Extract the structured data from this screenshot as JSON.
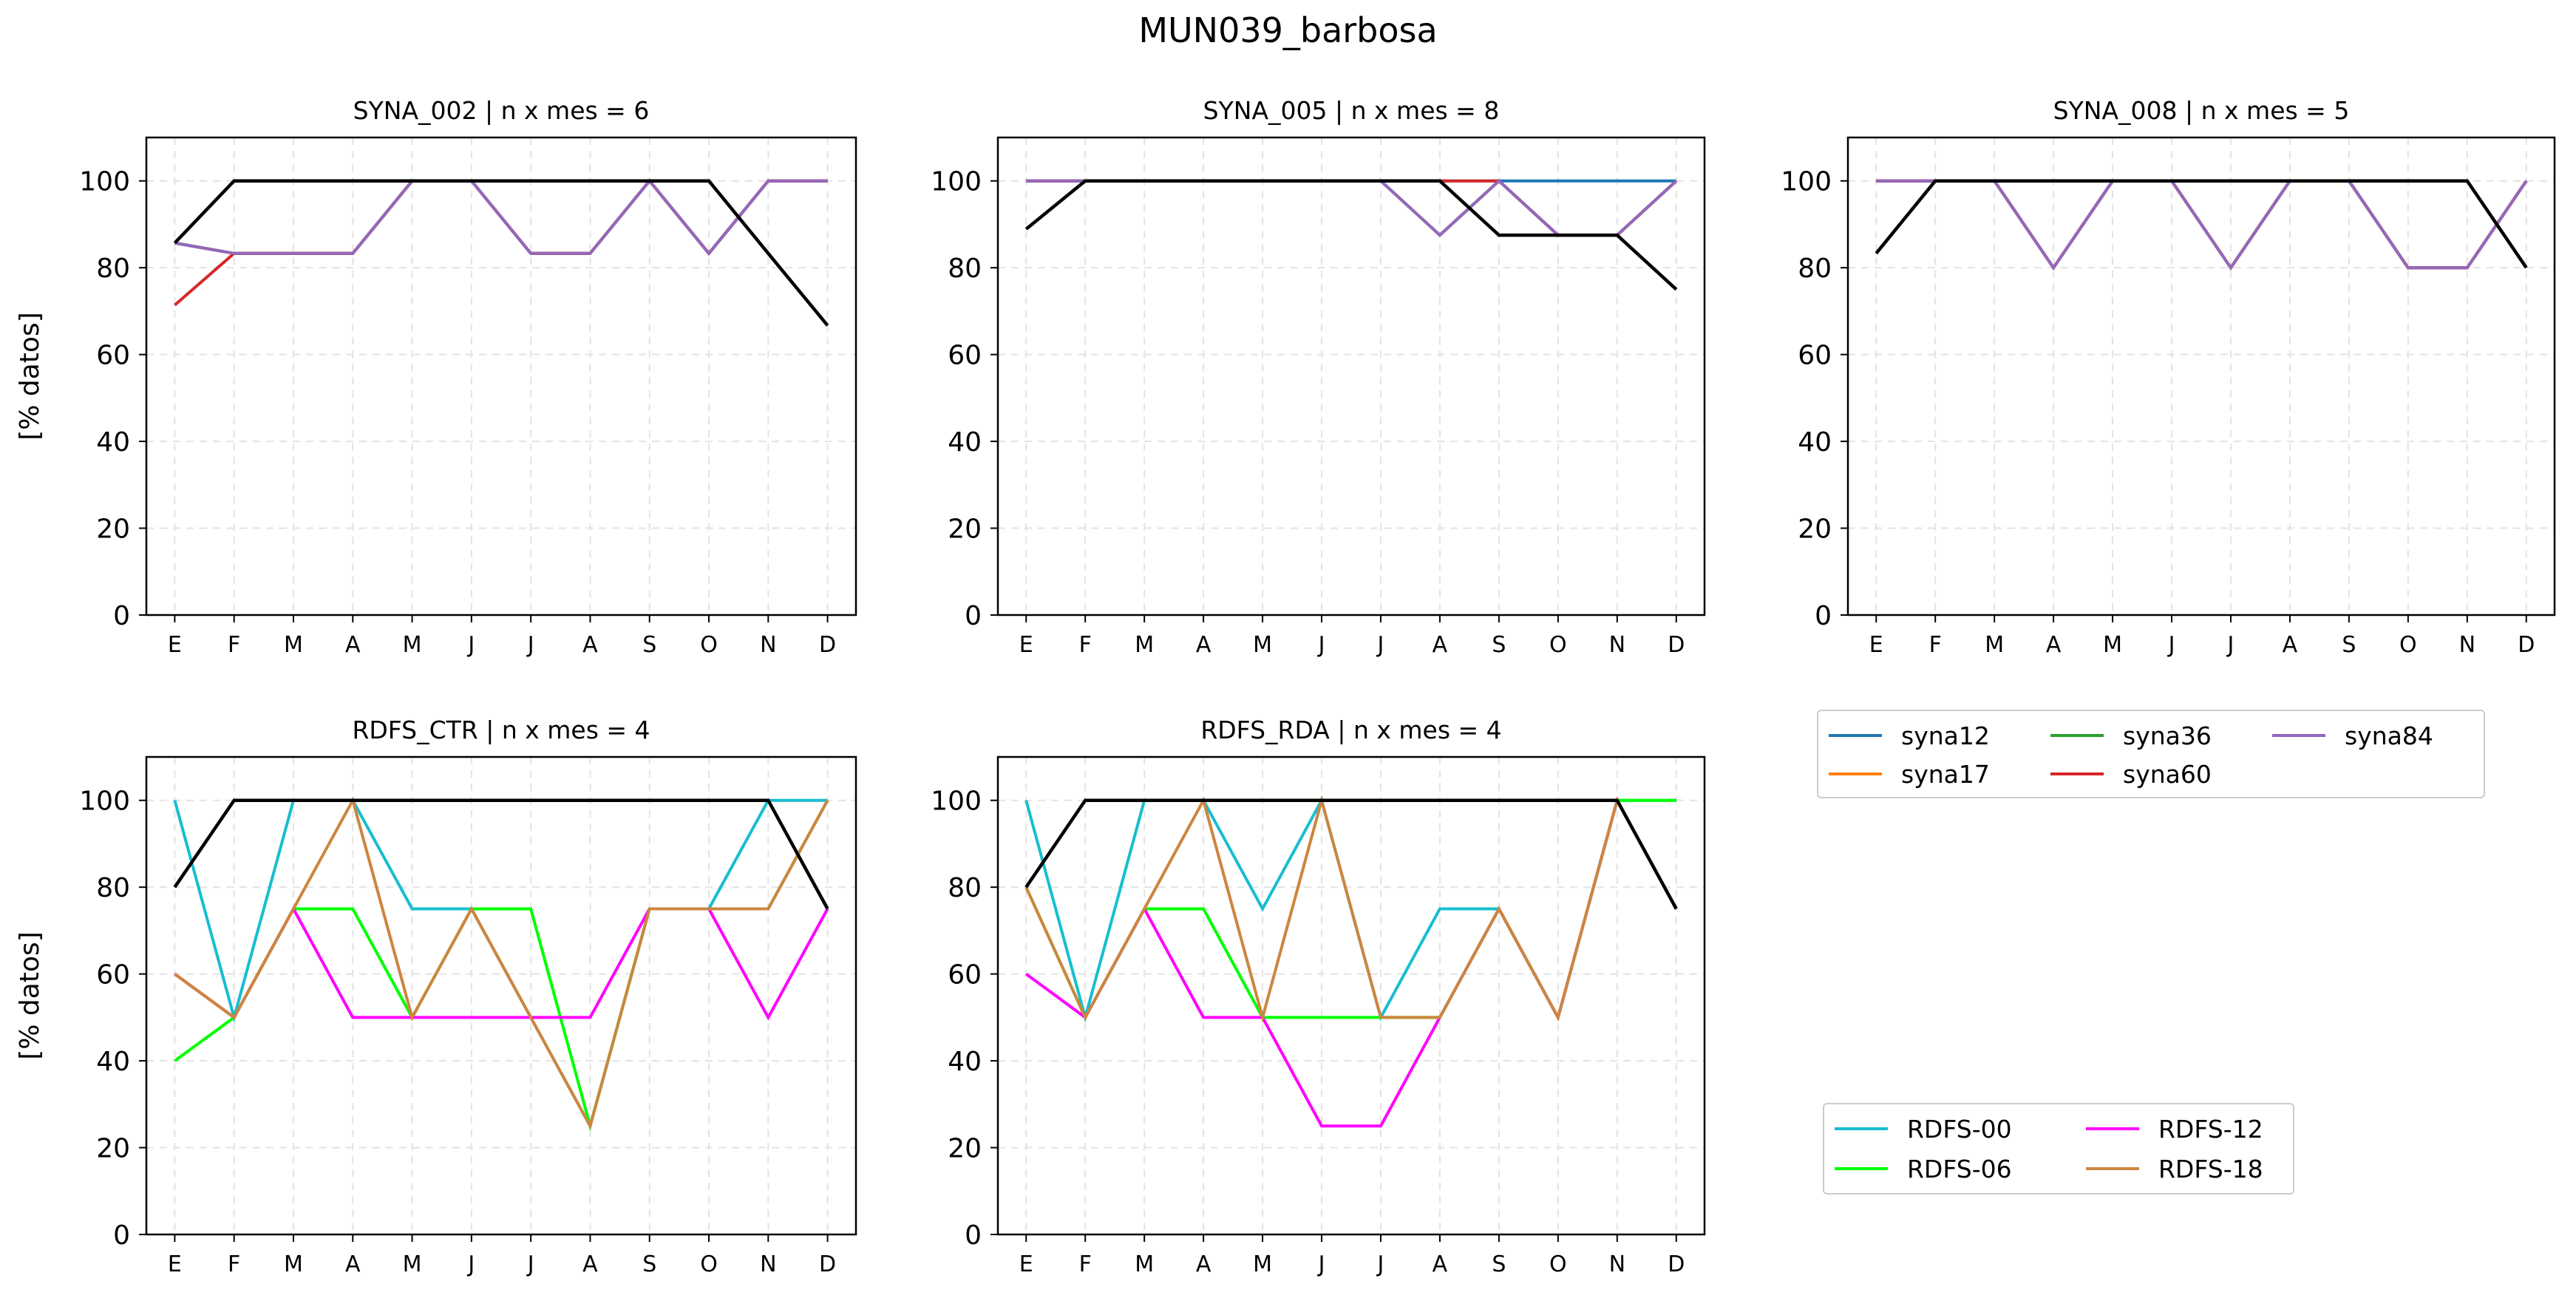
{
  "suptitle": "MUN039_barbosa",
  "ylabel": "[% datos]",
  "months": [
    "E",
    "F",
    "M",
    "A",
    "M",
    "J",
    "J",
    "A",
    "S",
    "O",
    "N",
    "D"
  ],
  "yticks": [
    0,
    20,
    40,
    60,
    80,
    100
  ],
  "colors": {
    "syna12": "#1f77b4",
    "syna17": "#ff7f0e",
    "syna36": "#2ca02c",
    "syna60": "#d62728",
    "syna84": "#9467bd",
    "RDFS-00": "#17becf",
    "RDFS-06": "#00ff00",
    "RDFS-12": "#ff00ff",
    "RDFS-18": "#cd853f",
    "total": "#000000"
  },
  "legends": {
    "syna": [
      "syna12",
      "syna17",
      "syna36",
      "syna60",
      "syna84"
    ],
    "rdfs": [
      "RDFS-00",
      "RDFS-06",
      "RDFS-12",
      "RDFS-18"
    ]
  },
  "chart_data": [
    {
      "type": "line",
      "title": "SYNA_002 | n x mes =  6",
      "categories": [
        "E",
        "F",
        "M",
        "A",
        "M",
        "J",
        "J",
        "A",
        "S",
        "O",
        "N",
        "D"
      ],
      "ylim": [
        0,
        110
      ],
      "grid": true,
      "series": [
        {
          "name": "syna12",
          "values": [
            85.7,
            83.3,
            83.3,
            83.3,
            100,
            100,
            83.3,
            83.3,
            100,
            83.3,
            100,
            100
          ]
        },
        {
          "name": "syna17",
          "values": [
            85.7,
            83.3,
            83.3,
            83.3,
            100,
            100,
            83.3,
            83.3,
            100,
            83.3,
            100,
            100
          ]
        },
        {
          "name": "syna36",
          "values": [
            85.7,
            83.3,
            83.3,
            83.3,
            100,
            100,
            83.3,
            83.3,
            100,
            83.3,
            100,
            100
          ]
        },
        {
          "name": "syna60",
          "values": [
            71.4,
            83.3,
            83.3,
            83.3,
            100,
            100,
            83.3,
            83.3,
            100,
            83.3,
            100,
            100
          ]
        },
        {
          "name": "syna84",
          "values": [
            85.7,
            83.3,
            83.3,
            83.3,
            100,
            100,
            83.3,
            83.3,
            100,
            83.3,
            100,
            100
          ]
        },
        {
          "name": "",
          "key": "total",
          "values": [
            85.7,
            100,
            100,
            100,
            100,
            100,
            100,
            100,
            100,
            100,
            83.3,
            66.7
          ]
        }
      ]
    },
    {
      "type": "line",
      "title": "SYNA_005 | n x mes =  8",
      "categories": [
        "E",
        "F",
        "M",
        "A",
        "M",
        "J",
        "J",
        "A",
        "S",
        "O",
        "N",
        "D"
      ],
      "ylim": [
        0,
        110
      ],
      "grid": true,
      "series": [
        {
          "name": "syna12",
          "values": [
            100,
            100,
            100,
            100,
            100,
            100,
            100,
            100,
            100,
            100,
            100,
            100
          ]
        },
        {
          "name": "syna17",
          "values": [
            100,
            100,
            100,
            100,
            100,
            100,
            100,
            87.5,
            100,
            87.5,
            87.5,
            100
          ]
        },
        {
          "name": "syna36",
          "values": [
            100,
            100,
            100,
            100,
            100,
            100,
            100,
            87.5,
            100,
            87.5,
            87.5,
            100
          ]
        },
        {
          "name": "syna60",
          "values": [
            100,
            100,
            100,
            100,
            100,
            100,
            100,
            100,
            100,
            87.5,
            87.5,
            100
          ]
        },
        {
          "name": "syna84",
          "values": [
            100,
            100,
            100,
            100,
            100,
            100,
            100,
            87.5,
            100,
            87.5,
            87.5,
            100
          ]
        },
        {
          "name": "",
          "key": "total",
          "values": [
            88.9,
            100,
            100,
            100,
            100,
            100,
            100,
            100,
            87.5,
            87.5,
            87.5,
            75
          ]
        }
      ]
    },
    {
      "type": "line",
      "title": "SYNA_008 | n x mes =  5",
      "categories": [
        "E",
        "F",
        "M",
        "A",
        "M",
        "J",
        "J",
        "A",
        "S",
        "O",
        "N",
        "D"
      ],
      "ylim": [
        0,
        110
      ],
      "grid": true,
      "series": [
        {
          "name": "syna12",
          "values": [
            100,
            100,
            100,
            80,
            100,
            100,
            80,
            100,
            100,
            80,
            80,
            100
          ]
        },
        {
          "name": "syna17",
          "values": [
            100,
            100,
            100,
            80,
            100,
            100,
            80,
            100,
            100,
            80,
            80,
            100
          ]
        },
        {
          "name": "syna36",
          "values": [
            100,
            100,
            100,
            80,
            100,
            100,
            80,
            100,
            100,
            80,
            80,
            100
          ]
        },
        {
          "name": "syna60",
          "values": [
            100,
            100,
            100,
            80,
            100,
            100,
            80,
            100,
            100,
            80,
            80,
            100
          ]
        },
        {
          "name": "syna84",
          "values": [
            100,
            100,
            100,
            80,
            100,
            100,
            80,
            100,
            100,
            80,
            80,
            100
          ]
        },
        {
          "name": "",
          "key": "total",
          "values": [
            83.3,
            100,
            100,
            100,
            100,
            100,
            100,
            100,
            100,
            100,
            100,
            80
          ]
        }
      ]
    },
    {
      "type": "line",
      "title": "RDFS_CTR | n x mes =  4",
      "categories": [
        "E",
        "F",
        "M",
        "A",
        "M",
        "J",
        "J",
        "A",
        "S",
        "O",
        "N",
        "D"
      ],
      "ylim": [
        0,
        110
      ],
      "grid": true,
      "series": [
        {
          "name": "RDFS-00",
          "values": [
            100,
            50,
            100,
            100,
            75,
            75,
            50,
            25,
            75,
            75,
            100,
            100
          ]
        },
        {
          "name": "RDFS-06",
          "values": [
            40,
            50,
            75,
            75,
            50,
            75,
            75,
            25,
            75,
            75,
            75,
            100
          ]
        },
        {
          "name": "RDFS-12",
          "values": [
            60,
            50,
            75,
            50,
            50,
            50,
            50,
            50,
            75,
            75,
            50,
            75
          ]
        },
        {
          "name": "RDFS-18",
          "values": [
            60,
            50,
            75,
            100,
            50,
            75,
            50,
            25,
            75,
            75,
            75,
            100
          ]
        },
        {
          "name": "",
          "key": "total",
          "values": [
            80,
            100,
            100,
            100,
            100,
            100,
            100,
            100,
            100,
            100,
            100,
            75
          ]
        }
      ]
    },
    {
      "type": "line",
      "title": "RDFS_RDA | n x mes =  4",
      "categories": [
        "E",
        "F",
        "M",
        "A",
        "M",
        "J",
        "J",
        "A",
        "S",
        "O",
        "N",
        "D"
      ],
      "ylim": [
        0,
        110
      ],
      "grid": true,
      "series": [
        {
          "name": "RDFS-00",
          "values": [
            100,
            50,
            100,
            100,
            75,
            100,
            50,
            75,
            75,
            50,
            100,
            100
          ]
        },
        {
          "name": "RDFS-06",
          "values": [
            80,
            50,
            75,
            75,
            50,
            50,
            50,
            50,
            75,
            50,
            100,
            100
          ]
        },
        {
          "name": "RDFS-12",
          "values": [
            60,
            50,
            75,
            50,
            50,
            25,
            25,
            50,
            75,
            50,
            100,
            75
          ]
        },
        {
          "name": "RDFS-18",
          "values": [
            80,
            50,
            75,
            100,
            50,
            100,
            50,
            50,
            75,
            50,
            100,
            75
          ]
        },
        {
          "name": "",
          "key": "total",
          "values": [
            80,
            100,
            100,
            100,
            100,
            100,
            100,
            100,
            100,
            100,
            100,
            75
          ]
        }
      ]
    }
  ]
}
